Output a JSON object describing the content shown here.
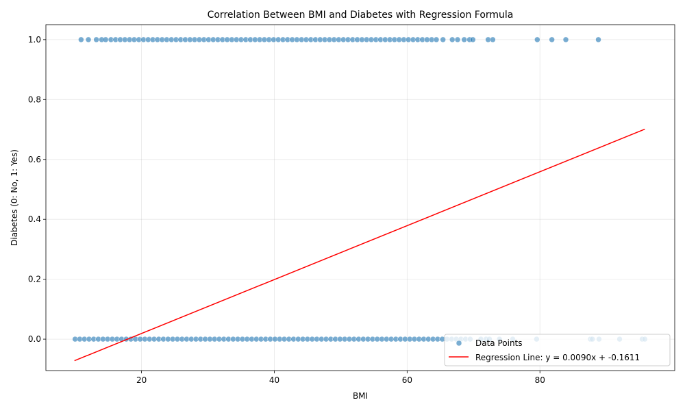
{
  "chart_data": {
    "type": "scatter",
    "title": "Correlation Between BMI and Diabetes with Regression Formula",
    "xlabel": "BMI",
    "ylabel": "Diabetes (0: No, 1: Yes)",
    "xlim": [
      5.6,
      100.3
    ],
    "ylim": [
      -0.105,
      1.05
    ],
    "xticks": [
      20,
      40,
      60,
      80
    ],
    "yticks": [
      0.0,
      0.2,
      0.4,
      0.6,
      0.8,
      1.0
    ],
    "xtick_labels": [
      "20",
      "40",
      "60",
      "80"
    ],
    "ytick_labels": [
      "0.0",
      "0.2",
      "0.4",
      "0.6",
      "0.8",
      "1.0"
    ],
    "grid": true,
    "legend_position": "lower-right",
    "series": [
      {
        "name": "Data Points",
        "kind": "scatter",
        "color": "#1f77b4",
        "points": [
          [
            10.9,
            1
          ],
          [
            12,
            1
          ],
          [
            13.2,
            1
          ],
          [
            14,
            1
          ],
          [
            14.6,
            1
          ],
          [
            15.4,
            1
          ],
          [
            16.1,
            1
          ],
          [
            16.8,
            1
          ],
          [
            17.5,
            1
          ],
          [
            18.2,
            1
          ],
          [
            18.9,
            1
          ],
          [
            19.6,
            1
          ],
          [
            20.3,
            1
          ],
          [
            21,
            1
          ],
          [
            21.7,
            1
          ],
          [
            22.4,
            1
          ],
          [
            23.1,
            1
          ],
          [
            23.8,
            1
          ],
          [
            24.5,
            1
          ],
          [
            25.2,
            1
          ],
          [
            25.9,
            1
          ],
          [
            26.6,
            1
          ],
          [
            27.3,
            1
          ],
          [
            28,
            1
          ],
          [
            28.7,
            1
          ],
          [
            29.4,
            1
          ],
          [
            30.1,
            1
          ],
          [
            30.8,
            1
          ],
          [
            31.5,
            1
          ],
          [
            32.2,
            1
          ],
          [
            32.9,
            1
          ],
          [
            33.6,
            1
          ],
          [
            34.3,
            1
          ],
          [
            35,
            1
          ],
          [
            35.7,
            1
          ],
          [
            36.4,
            1
          ],
          [
            37.1,
            1
          ],
          [
            37.8,
            1
          ],
          [
            38.5,
            1
          ],
          [
            39.2,
            1
          ],
          [
            39.9,
            1
          ],
          [
            40.6,
            1
          ],
          [
            41.3,
            1
          ],
          [
            42,
            1
          ],
          [
            42.7,
            1
          ],
          [
            43.4,
            1
          ],
          [
            44.1,
            1
          ],
          [
            44.8,
            1
          ],
          [
            45.5,
            1
          ],
          [
            46.2,
            1
          ],
          [
            46.9,
            1
          ],
          [
            47.6,
            1
          ],
          [
            48.3,
            1
          ],
          [
            49,
            1
          ],
          [
            49.7,
            1
          ],
          [
            50.4,
            1
          ],
          [
            51.1,
            1
          ],
          [
            51.8,
            1
          ],
          [
            52.5,
            1
          ],
          [
            53.2,
            1
          ],
          [
            53.9,
            1
          ],
          [
            54.6,
            1
          ],
          [
            55.3,
            1
          ],
          [
            56,
            1
          ],
          [
            56.7,
            1
          ],
          [
            57.4,
            1
          ],
          [
            58.1,
            1
          ],
          [
            58.8,
            1
          ],
          [
            59.5,
            1
          ],
          [
            60.2,
            1
          ],
          [
            60.9,
            1
          ],
          [
            61.6,
            1
          ],
          [
            62.3,
            1
          ],
          [
            63,
            1
          ],
          [
            63.7,
            1
          ],
          [
            64.4,
            1
          ],
          [
            65.4,
            1
          ],
          [
            66.8,
            1
          ],
          [
            67.6,
            1
          ],
          [
            68.6,
            1
          ],
          [
            69.4,
            1
          ],
          [
            69.9,
            1
          ],
          [
            72.2,
            1
          ],
          [
            72.9,
            1
          ],
          [
            79.6,
            1
          ],
          [
            81.8,
            1
          ],
          [
            83.9,
            1
          ],
          [
            88.8,
            1
          ],
          [
            10,
            0
          ],
          [
            10.7,
            0
          ],
          [
            11.4,
            0
          ],
          [
            12.1,
            0
          ],
          [
            12.8,
            0
          ],
          [
            13.5,
            0
          ],
          [
            14.2,
            0
          ],
          [
            14.9,
            0
          ],
          [
            15.6,
            0
          ],
          [
            16.3,
            0
          ],
          [
            17,
            0
          ],
          [
            17.7,
            0
          ],
          [
            18.4,
            0
          ],
          [
            19.1,
            0
          ],
          [
            19.8,
            0
          ],
          [
            20.5,
            0
          ],
          [
            21.2,
            0
          ],
          [
            21.9,
            0
          ],
          [
            22.6,
            0
          ],
          [
            23.3,
            0
          ],
          [
            24,
            0
          ],
          [
            24.7,
            0
          ],
          [
            25.4,
            0
          ],
          [
            26.1,
            0
          ],
          [
            26.8,
            0
          ],
          [
            27.5,
            0
          ],
          [
            28.2,
            0
          ],
          [
            28.9,
            0
          ],
          [
            29.6,
            0
          ],
          [
            30.3,
            0
          ],
          [
            31,
            0
          ],
          [
            31.7,
            0
          ],
          [
            32.4,
            0
          ],
          [
            33.1,
            0
          ],
          [
            33.8,
            0
          ],
          [
            34.5,
            0
          ],
          [
            35.2,
            0
          ],
          [
            35.9,
            0
          ],
          [
            36.6,
            0
          ],
          [
            37.3,
            0
          ],
          [
            38,
            0
          ],
          [
            38.7,
            0
          ],
          [
            39.4,
            0
          ],
          [
            40.1,
            0
          ],
          [
            40.8,
            0
          ],
          [
            41.5,
            0
          ],
          [
            42.2,
            0
          ],
          [
            42.9,
            0
          ],
          [
            43.6,
            0
          ],
          [
            44.3,
            0
          ],
          [
            45,
            0
          ],
          [
            45.7,
            0
          ],
          [
            46.4,
            0
          ],
          [
            47.1,
            0
          ],
          [
            47.8,
            0
          ],
          [
            48.5,
            0
          ],
          [
            49.2,
            0
          ],
          [
            49.9,
            0
          ],
          [
            50.6,
            0
          ],
          [
            51.3,
            0
          ],
          [
            52,
            0
          ],
          [
            52.7,
            0
          ],
          [
            53.4,
            0
          ],
          [
            54.1,
            0
          ],
          [
            54.8,
            0
          ],
          [
            55.5,
            0
          ],
          [
            56.2,
            0
          ],
          [
            56.9,
            0
          ],
          [
            57.6,
            0
          ],
          [
            58.3,
            0
          ],
          [
            59,
            0
          ],
          [
            59.7,
            0
          ],
          [
            60.4,
            0
          ],
          [
            61.1,
            0
          ],
          [
            61.8,
            0
          ],
          [
            62.5,
            0
          ],
          [
            63.2,
            0
          ],
          [
            63.9,
            0
          ],
          [
            64.6,
            0
          ],
          [
            65.3,
            0
          ],
          [
            66,
            0
          ],
          [
            66.7,
            0
          ],
          [
            67.4,
            0
          ],
          [
            68.1,
            0
          ],
          [
            68.8,
            0
          ],
          [
            69.5,
            0
          ],
          [
            71.1,
            0
          ],
          [
            71.9,
            0
          ],
          [
            72.4,
            0
          ],
          [
            73.9,
            0
          ],
          [
            75.9,
            0
          ],
          [
            79.5,
            0
          ],
          [
            87.6,
            0
          ],
          [
            87.9,
            0
          ],
          [
            88.9,
            0
          ],
          [
            92,
            0
          ],
          [
            95.4,
            0
          ],
          [
            95.8,
            0
          ]
        ]
      },
      {
        "name": "Regression Line: y = 0.0090x + -0.1611",
        "kind": "line",
        "color": "#ff0000",
        "slope": 0.009,
        "intercept": -0.1611,
        "x_range": [
          9.9,
          95.8
        ]
      }
    ]
  }
}
